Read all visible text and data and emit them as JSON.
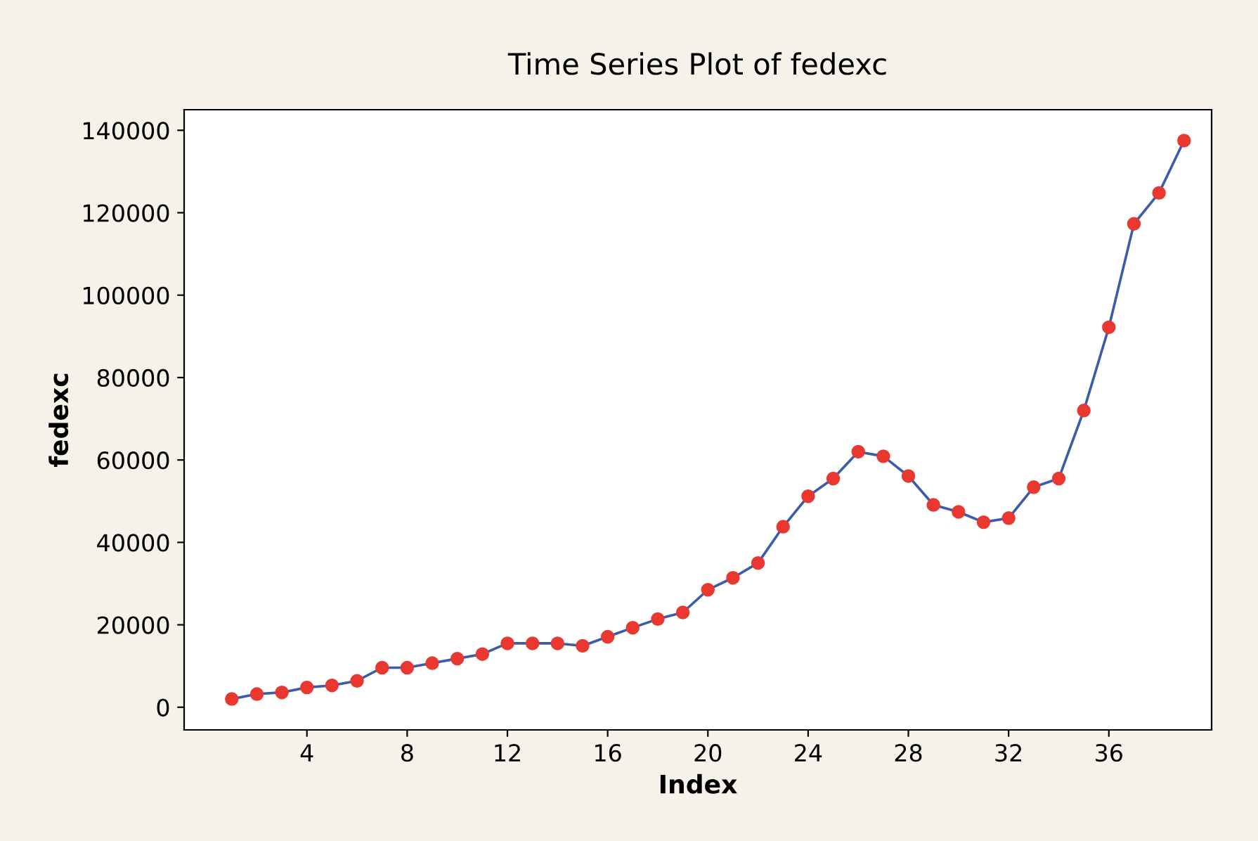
{
  "chart_data": {
    "type": "line",
    "title": "Time Series Plot of fedexc",
    "xlabel": "Index",
    "ylabel": "fedexc",
    "x": [
      1,
      2,
      3,
      4,
      5,
      6,
      7,
      8,
      9,
      10,
      11,
      12,
      13,
      14,
      15,
      16,
      17,
      18,
      19,
      20,
      21,
      22,
      23,
      24,
      25,
      26,
      27,
      28,
      29,
      30,
      31,
      32,
      33,
      34,
      35,
      36,
      37,
      38,
      39
    ],
    "series": [
      {
        "color": "#3b5bab",
        "colors": [
          "#e8382f",
          "#e8382f",
          "#e8382f",
          "#e8382f",
          "#e8382f",
          "#e8382f",
          "#e8382f",
          "#e8382f",
          "#e8382f",
          "#e8382f",
          "#e8382f",
          "#e8382f",
          "#e8382f",
          "#e8382f",
          "#e8382f",
          "#e8382f",
          "#e8382f",
          "#e8382f",
          "#e8382f",
          "#e8382f",
          "#e8382f",
          "#e8382f",
          "#e8382f",
          "#e8382f",
          "#e8382f",
          "#e8382f",
          "#e8382f",
          "#e8382f",
          "#e8382f",
          "#e8382f",
          "#e8382f",
          "#e8382f",
          "#e8382f",
          "#e8382f",
          "#e8382f",
          "#e8382f",
          "#e8382f",
          "#e8382f",
          "#e8382f"
        ],
        "values": [
          2000,
          3200,
          3600,
          4800,
          5300,
          6400,
          9600,
          9600,
          10700,
          11800,
          12900,
          15500,
          15500,
          15500,
          14900,
          17100,
          19300,
          21400,
          23000,
          28500,
          31400,
          35000,
          43800,
          51200,
          55500,
          62000,
          60900,
          56100,
          49100,
          47400,
          44900,
          45900,
          53400,
          55500,
          72000,
          92200,
          117300,
          124800,
          137500
        ]
      }
    ],
    "xlim": [
      -0.9,
      40.1
    ],
    "xticks": [
      4,
      8,
      12,
      16,
      20,
      24,
      28,
      32,
      36
    ],
    "ylim": [
      -5500,
      145000
    ],
    "yticks": [
      0,
      20000,
      40000,
      60000,
      80000,
      100000,
      120000,
      140000
    ],
    "marker": "circle",
    "line_style": "solid",
    "grid": false,
    "legend": false
  }
}
